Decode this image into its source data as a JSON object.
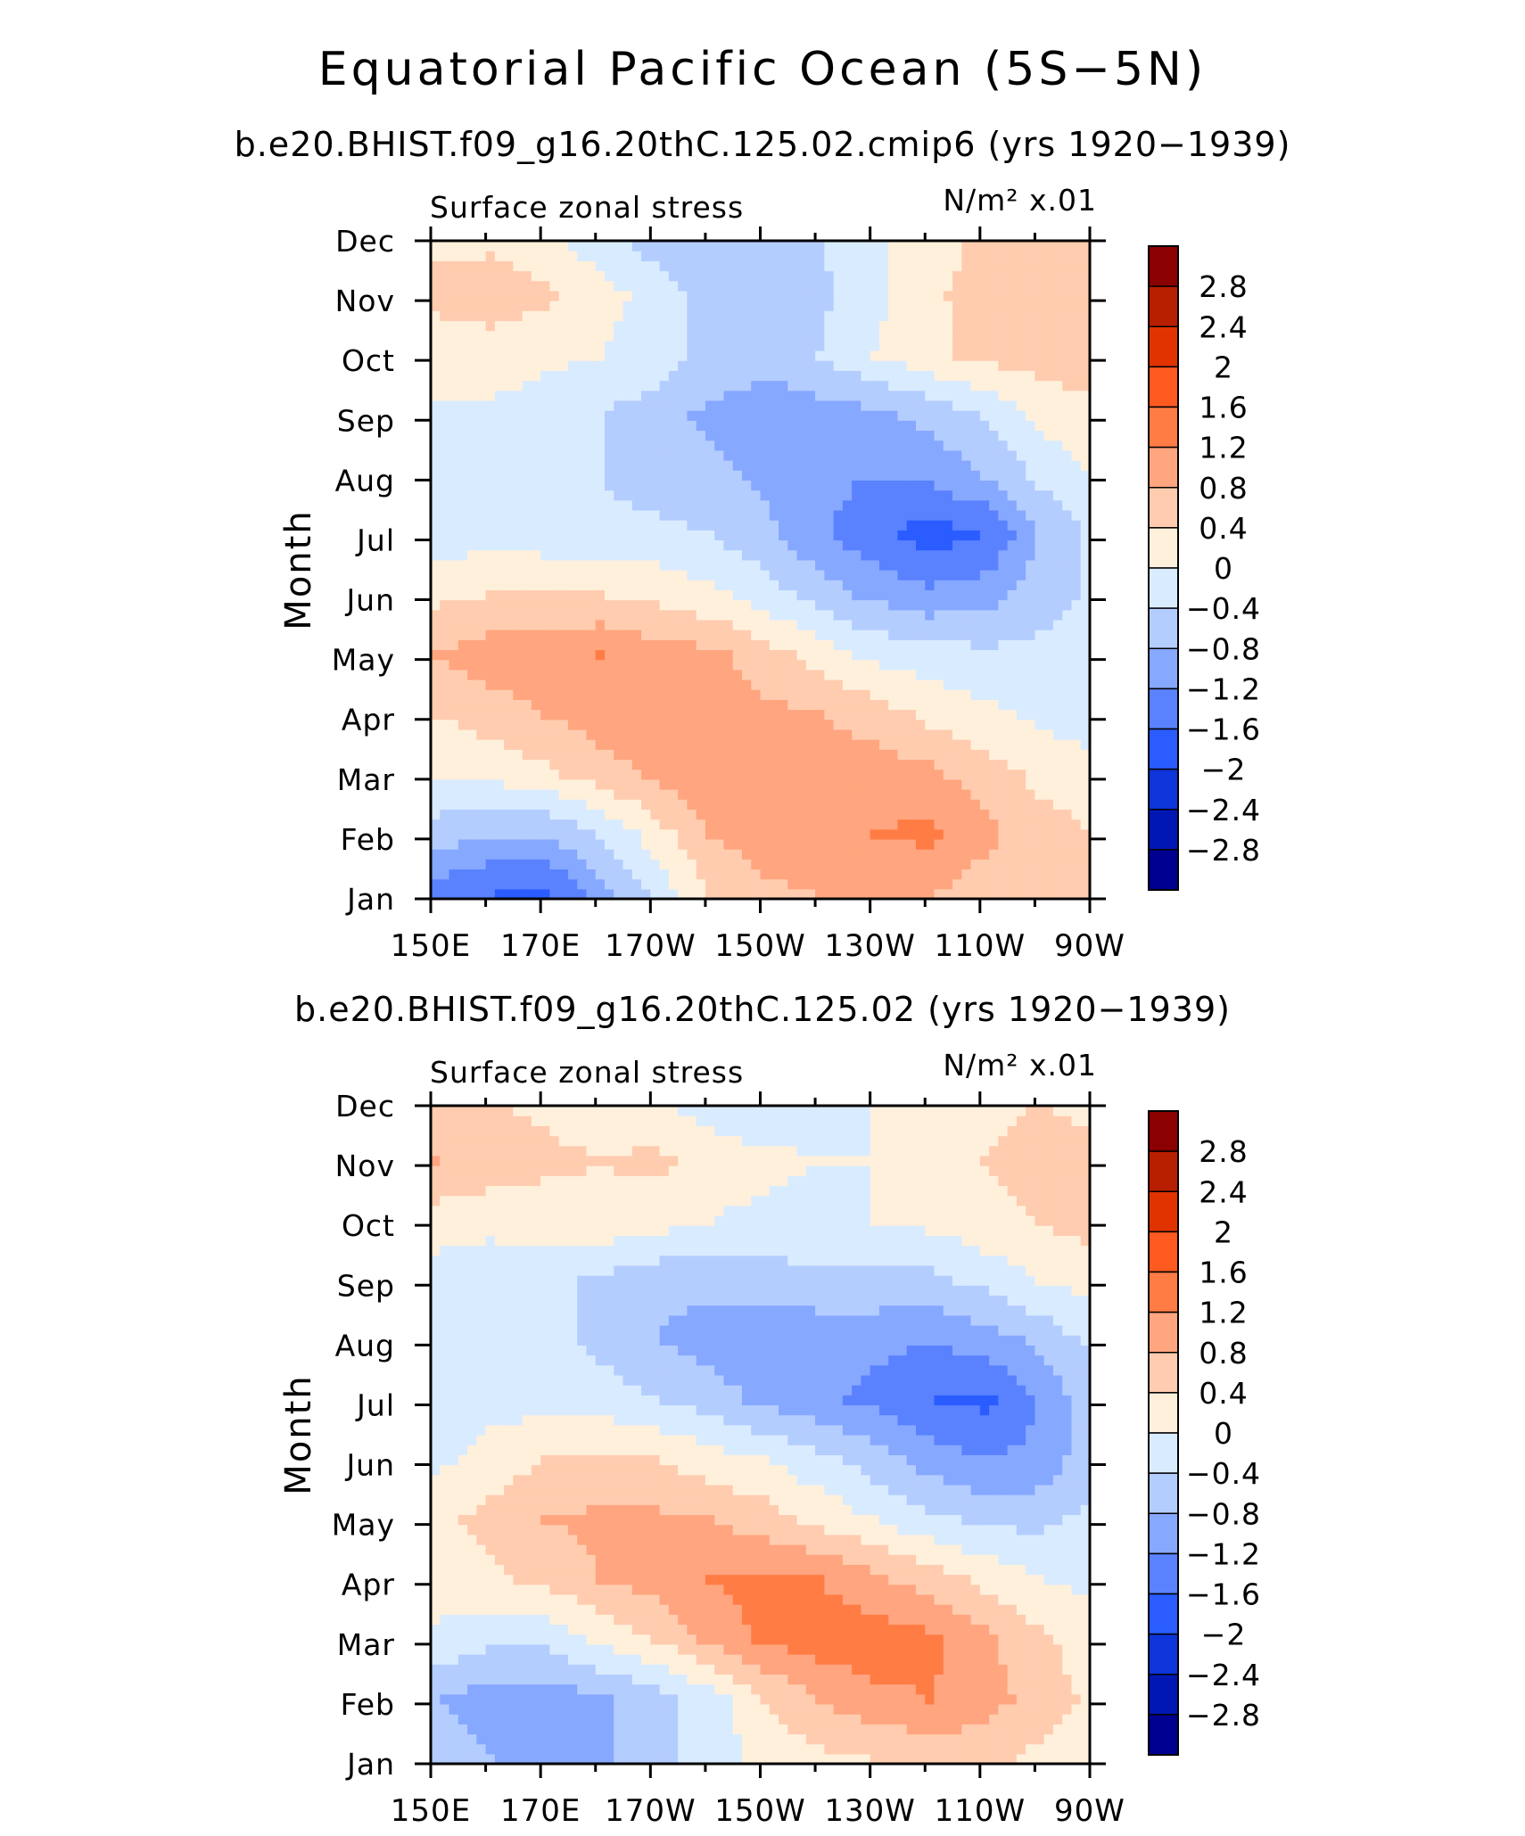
{
  "figure": {
    "title": "Equatorial Pacific Ocean (5S−5N)"
  },
  "colorbar": {
    "levels": [
      "2.8",
      "2.4",
      "2",
      "1.6",
      "1.2",
      "0.8",
      "0.4",
      "0",
      "−0.4",
      "−0.8",
      "−1.2",
      "−1.6",
      "−2",
      "−2.4",
      "−2.8"
    ],
    "colors": [
      "#8b0000",
      "#b81e00",
      "#e03300",
      "#ff5a1f",
      "#ff7c45",
      "#ffa57f",
      "#ffccaf",
      "#fff0dc",
      "#d9ebff",
      "#b4cdff",
      "#87a8ff",
      "#5a82ff",
      "#2a5cff",
      "#0d35d9",
      "#0017b3",
      "#000090"
    ]
  },
  "chart_data": [
    {
      "type": "heatmap",
      "title": "b.e20.BHIST.f09_g16.20thC.125.02.cmip6 (yrs 1920−1939)",
      "left_label": "Surface zonal stress",
      "units": "N/m² x.01",
      "xlabel": "",
      "ylabel": "Month",
      "x_ticks": [
        "150E",
        "170E",
        "170W",
        "150W",
        "130W",
        "110W",
        "90W"
      ],
      "y_ticks": [
        "Jan",
        "Feb",
        "Mar",
        "Apr",
        "May",
        "Jun",
        "Jul",
        "Aug",
        "Sep",
        "Oct",
        "Nov",
        "Dec"
      ],
      "x": [
        150,
        160,
        170,
        180,
        190,
        200,
        210,
        220,
        230,
        240,
        250,
        260,
        270
      ],
      "values": [
        [
          -1.4,
          -1.6,
          -1.7,
          -1.0,
          -0.3,
          0.4,
          0.7,
          0.8,
          0.8,
          0.8,
          0.6,
          0.5,
          0.4
        ],
        [
          -0.6,
          -0.8,
          -0.8,
          -0.4,
          0.2,
          0.8,
          1.0,
          1.1,
          1.2,
          1.3,
          0.9,
          0.6,
          0.4
        ],
        [
          0.0,
          0.1,
          0.3,
          0.6,
          0.9,
          1.1,
          1.0,
          1.0,
          1.0,
          0.9,
          0.6,
          0.3,
          0.1
        ],
        [
          0.4,
          0.6,
          0.8,
          1.0,
          1.0,
          0.9,
          0.9,
          0.8,
          0.6,
          0.3,
          0.1,
          -0.1,
          -0.2
        ],
        [
          0.8,
          1.0,
          1.1,
          1.2,
          1.0,
          0.9,
          0.6,
          0.2,
          -0.1,
          -0.2,
          -0.3,
          -0.3,
          -0.3
        ],
        [
          0.3,
          0.4,
          0.4,
          0.4,
          0.3,
          0.1,
          -0.2,
          -0.6,
          -0.9,
          -1.1,
          -1.0,
          -0.6,
          -0.3
        ],
        [
          -0.3,
          -0.1,
          -0.2,
          -0.3,
          -0.3,
          -0.4,
          -0.7,
          -1.1,
          -1.5,
          -1.8,
          -1.6,
          -0.8,
          -0.3
        ],
        [
          -0.3,
          -0.2,
          -0.2,
          -0.4,
          -0.6,
          -0.7,
          -0.9,
          -1.1,
          -1.2,
          -1.1,
          -0.8,
          -0.3,
          0.0
        ],
        [
          -0.1,
          -0.1,
          -0.2,
          -0.4,
          -0.6,
          -0.9,
          -1.1,
          -1.0,
          -0.9,
          -0.7,
          -0.4,
          0.1,
          0.3
        ],
        [
          0.2,
          0.2,
          0.1,
          0.0,
          -0.2,
          -0.5,
          -0.6,
          -0.4,
          0.0,
          0.3,
          0.5,
          0.6,
          0.6
        ],
        [
          0.5,
          0.6,
          0.5,
          0.2,
          -0.2,
          -0.6,
          -0.8,
          -0.5,
          -0.1,
          0.3,
          0.6,
          0.6,
          0.5
        ],
        [
          0.3,
          0.3,
          0.1,
          -0.3,
          -0.6,
          -0.8,
          -0.7,
          -0.4,
          -0.1,
          0.2,
          0.5,
          0.6,
          0.5
        ]
      ],
      "levels": [
        -2.8,
        -2.4,
        -2.0,
        -1.6,
        -1.2,
        -0.8,
        -0.4,
        0.0,
        0.4,
        0.8,
        1.2,
        1.6,
        2.0,
        2.4,
        2.8
      ]
    },
    {
      "type": "heatmap",
      "title": "b.e20.BHIST.f09_g16.20thC.125.02 (yrs 1920−1939)",
      "left_label": "Surface zonal stress",
      "units": "N/m² x.01",
      "xlabel": "",
      "ylabel": "Month",
      "x_ticks": [
        "150E",
        "170E",
        "170W",
        "150W",
        "130W",
        "110W",
        "90W"
      ],
      "y_ticks": [
        "Jan",
        "Feb",
        "Mar",
        "Apr",
        "May",
        "Jun",
        "Jul",
        "Aug",
        "Sep",
        "Oct",
        "Nov",
        "Dec"
      ],
      "x": [
        150,
        160,
        170,
        180,
        190,
        200,
        210,
        220,
        230,
        240,
        250,
        260,
        270
      ],
      "values": [
        [
          -0.5,
          -0.8,
          -0.9,
          -0.9,
          -0.6,
          -0.2,
          0.1,
          0.3,
          0.4,
          0.5,
          0.5,
          0.3,
          0.2
        ],
        [
          -0.8,
          -1.0,
          -1.0,
          -0.9,
          -0.6,
          -0.2,
          0.4,
          0.8,
          1.1,
          1.2,
          1.0,
          0.6,
          0.3
        ],
        [
          -0.1,
          -0.3,
          -0.3,
          0.1,
          0.4,
          0.9,
          1.3,
          1.4,
          1.4,
          1.3,
          0.9,
          0.5,
          0.2
        ],
        [
          0.2,
          0.3,
          0.5,
          0.8,
          1.0,
          1.2,
          1.3,
          1.2,
          0.9,
          0.6,
          0.3,
          0.0,
          -0.1
        ],
        [
          0.3,
          0.5,
          0.8,
          0.9,
          0.9,
          0.8,
          0.6,
          0.3,
          0.0,
          -0.3,
          -0.5,
          -0.5,
          -0.3
        ],
        [
          -0.1,
          0.2,
          0.4,
          0.5,
          0.4,
          0.2,
          0.0,
          -0.3,
          -0.6,
          -1.0,
          -1.2,
          -1.1,
          -0.5
        ],
        [
          -0.3,
          -0.2,
          -0.1,
          -0.2,
          -0.4,
          -0.6,
          -0.9,
          -1.1,
          -1.3,
          -1.6,
          -1.7,
          -1.2,
          -0.5
        ],
        [
          -0.3,
          -0.3,
          -0.3,
          -0.5,
          -0.8,
          -1.0,
          -1.1,
          -1.1,
          -1.1,
          -1.2,
          -1.0,
          -0.7,
          -0.3
        ],
        [
          -0.2,
          -0.2,
          -0.3,
          -0.5,
          -0.7,
          -0.7,
          -0.6,
          -0.5,
          -0.5,
          -0.5,
          -0.3,
          0.0,
          0.2
        ],
        [
          0.2,
          0.1,
          0.2,
          0.3,
          0.2,
          0.0,
          -0.1,
          -0.1,
          0.0,
          0.1,
          0.3,
          0.4,
          0.6
        ],
        [
          0.8,
          0.7,
          0.5,
          0.4,
          0.5,
          0.2,
          0.1,
          0.0,
          0.0,
          0.1,
          0.4,
          0.5,
          0.5
        ],
        [
          0.5,
          0.4,
          0.3,
          0.2,
          0.0,
          -0.2,
          -0.3,
          -0.2,
          0.0,
          0.1,
          0.3,
          0.4,
          0.3
        ]
      ],
      "levels": [
        -2.8,
        -2.4,
        -2.0,
        -1.6,
        -1.2,
        -0.8,
        -0.4,
        0.0,
        0.4,
        0.8,
        1.2,
        1.6,
        2.0,
        2.4,
        2.8
      ]
    }
  ]
}
